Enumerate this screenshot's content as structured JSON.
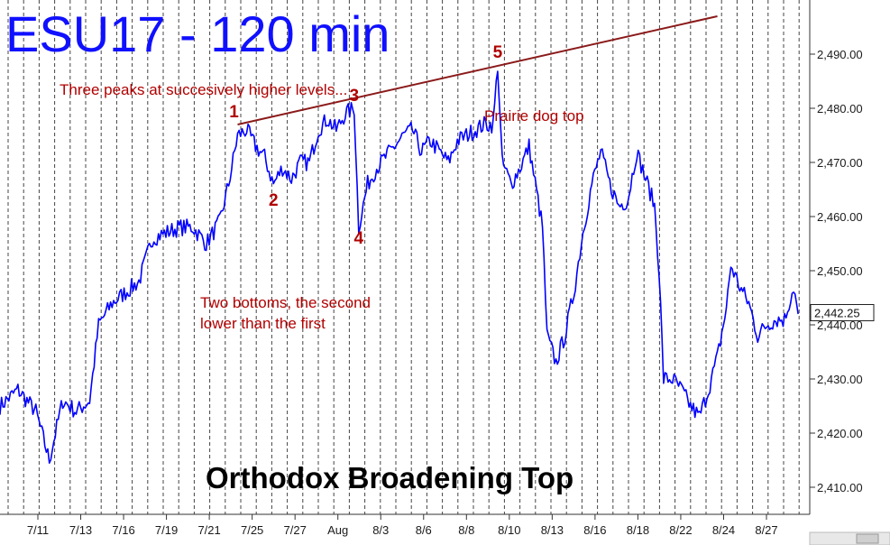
{
  "chart_data": {
    "type": "line",
    "title": "ESU17 - 120 min",
    "ylim": [
      2405,
      2500
    ],
    "yticks": [
      2410,
      2420,
      2430,
      2440,
      2450,
      2460,
      2470,
      2480,
      2490
    ],
    "ytick_labels": [
      "2,410.00",
      "2,420.00",
      "2,430.00",
      "2,440.00",
      "2,450.00",
      "2,460.00",
      "2,470.00",
      "2,480.00",
      "2,490.00"
    ],
    "xticks": [
      "7/11",
      "7/13",
      "7/16",
      "7/19",
      "7/21",
      "7/25",
      "7/27",
      "Aug",
      "8/3",
      "8/6",
      "8/8",
      "8/10",
      "8/13",
      "8/16",
      "8/18",
      "8/22",
      "8/24",
      "8/27"
    ],
    "last_price": 2442.25,
    "last_price_label": "2,442.25",
    "grid": "vertical-dashed",
    "series": [
      {
        "color": "#0000ff",
        "points": [
          [
            0,
            2425
          ],
          [
            4,
            2428
          ],
          [
            8,
            2424
          ],
          [
            11,
            2415
          ],
          [
            14,
            2426
          ],
          [
            17,
            2424
          ],
          [
            20,
            2426
          ],
          [
            22,
            2440
          ],
          [
            25,
            2444
          ],
          [
            28,
            2446
          ],
          [
            31,
            2448
          ],
          [
            34,
            2456
          ],
          [
            37,
            2457
          ],
          [
            40,
            2458
          ],
          [
            43,
            2458
          ],
          [
            46,
            2455
          ],
          [
            49,
            2459
          ],
          [
            51,
            2466
          ],
          [
            53,
            2475
          ],
          [
            55,
            2476
          ],
          [
            57,
            2473
          ],
          [
            59,
            2471
          ],
          [
            61,
            2466
          ],
          [
            63,
            2469
          ],
          [
            65,
            2467
          ],
          [
            67,
            2470
          ],
          [
            69,
            2470
          ],
          [
            71,
            2476
          ],
          [
            73,
            2478
          ],
          [
            75,
            2476
          ],
          [
            77,
            2479
          ],
          [
            79,
            2480
          ],
          [
            80,
            2458
          ],
          [
            82,
            2466
          ],
          [
            84,
            2469
          ],
          [
            86,
            2471
          ],
          [
            88,
            2473
          ],
          [
            90,
            2475
          ],
          [
            92,
            2476
          ],
          [
            94,
            2472
          ],
          [
            96,
            2474
          ],
          [
            98,
            2472
          ],
          [
            100,
            2470
          ],
          [
            102,
            2474
          ],
          [
            104,
            2475
          ],
          [
            106,
            2476
          ],
          [
            108,
            2477
          ],
          [
            110,
            2477
          ],
          [
            111,
            2488
          ],
          [
            112,
            2470
          ],
          [
            114,
            2466
          ],
          [
            116,
            2469
          ],
          [
            118,
            2473
          ],
          [
            119,
            2468
          ],
          [
            121,
            2458
          ],
          [
            122,
            2438
          ],
          [
            124,
            2433
          ],
          [
            126,
            2438
          ],
          [
            128,
            2446
          ],
          [
            130,
            2457
          ],
          [
            132,
            2466
          ],
          [
            134,
            2472
          ],
          [
            136,
            2466
          ],
          [
            138,
            2462
          ],
          [
            140,
            2463
          ],
          [
            142,
            2472
          ],
          [
            144,
            2467
          ],
          [
            146,
            2462
          ],
          [
            147,
            2450
          ],
          [
            148,
            2430
          ],
          [
            150,
            2430
          ],
          [
            152,
            2428
          ],
          [
            154,
            2425
          ],
          [
            156,
            2423
          ],
          [
            158,
            2428
          ],
          [
            160,
            2434
          ],
          [
            162,
            2443
          ],
          [
            163,
            2451
          ],
          [
            165,
            2447
          ],
          [
            167,
            2444
          ],
          [
            169,
            2438
          ],
          [
            171,
            2440
          ],
          [
            173,
            2441
          ],
          [
            175,
            2441
          ],
          [
            177,
            2447
          ],
          [
            178,
            2442
          ]
        ]
      }
    ],
    "trendline": {
      "color": "#8b1a1a",
      "from": [
        53,
        2477
      ],
      "to": [
        160,
        2497
      ]
    },
    "annotations": {
      "peaks_text": "Three peaks at succesively higher levels...",
      "bottoms_text_1": "Two bottoms, the second",
      "bottoms_text_2": "lower than the first",
      "prairie_text": "Prairie dog top",
      "pattern_title": "Orthodox Broadening Top",
      "labels": [
        {
          "text": "1",
          "x": 53,
          "y": 2477
        },
        {
          "text": "2",
          "x": 61,
          "y": 2465
        },
        {
          "text": "3",
          "x": 79,
          "y": 2480
        },
        {
          "text": "4",
          "x": 80,
          "y": 2458
        },
        {
          "text": "5",
          "x": 111,
          "y": 2488
        }
      ]
    },
    "x_domain": [
      0,
      180
    ]
  }
}
